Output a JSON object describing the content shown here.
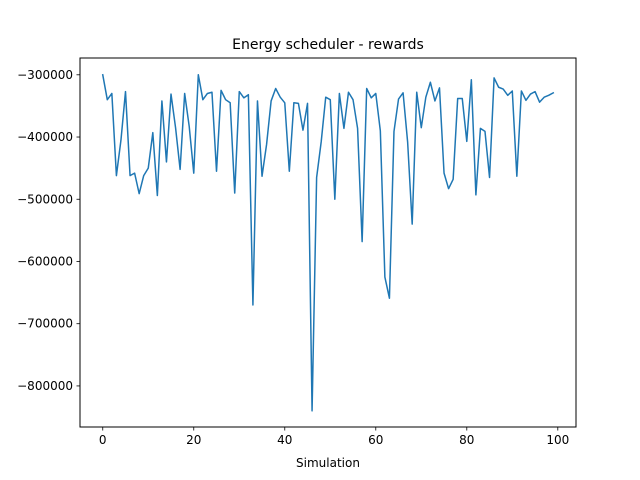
{
  "chart_data": {
    "type": "line",
    "title": "Energy scheduler - rewards",
    "xlabel": "Simulation",
    "ylabel": "",
    "xlim": [
      -5,
      104
    ],
    "ylim": [
      -866000,
      -273000
    ],
    "xticks": [
      0,
      20,
      40,
      60,
      80,
      100
    ],
    "yticks": [
      -800000,
      -700000,
      -600000,
      -500000,
      -400000,
      -300000
    ],
    "xtick_labels": [
      "0",
      "20",
      "40",
      "60",
      "80",
      "100"
    ],
    "ytick_labels": [
      "−800000",
      "−700000",
      "−600000",
      "−500000",
      "−400000",
      "−300000"
    ],
    "grid": false,
    "series": [
      {
        "name": "",
        "color": "#1f77b4",
        "x": [
          0,
          1,
          2,
          3,
          4,
          5,
          6,
          7,
          8,
          9,
          10,
          11,
          12,
          13,
          14,
          15,
          16,
          17,
          18,
          19,
          20,
          21,
          22,
          23,
          24,
          25,
          26,
          27,
          28,
          29,
          30,
          31,
          32,
          33,
          34,
          35,
          36,
          37,
          38,
          39,
          40,
          41,
          42,
          43,
          44,
          45,
          46,
          47,
          48,
          49,
          50,
          51,
          52,
          53,
          54,
          55,
          56,
          57,
          58,
          59,
          60,
          61,
          62,
          63,
          64,
          65,
          66,
          67,
          68,
          69,
          70,
          71,
          72,
          73,
          74,
          75,
          76,
          77,
          78,
          79,
          80,
          81,
          82,
          83,
          84,
          85,
          86,
          87,
          88,
          89,
          90,
          91,
          92,
          93,
          94,
          95,
          96,
          97,
          98,
          99
        ],
        "values": [
          -300000,
          -340000,
          -330000,
          -462000,
          -405000,
          -327000,
          -462000,
          -458000,
          -491000,
          -462000,
          -450000,
          -393000,
          -494000,
          -342000,
          -440000,
          -331000,
          -385000,
          -452000,
          -330000,
          -383000,
          -458000,
          -300000,
          -340000,
          -330000,
          -328000,
          -455000,
          -325000,
          -340000,
          -345000,
          -490000,
          -327000,
          -337000,
          -332000,
          -670000,
          -342000,
          -463000,
          -412000,
          -342000,
          -322000,
          -336000,
          -345000,
          -455000,
          -345000,
          -346000,
          -389000,
          -346000,
          -840000,
          -465000,
          -408000,
          -336000,
          -340000,
          -500000,
          -330000,
          -386000,
          -328000,
          -340000,
          -386000,
          -568000,
          -322000,
          -337000,
          -330000,
          -390000,
          -625000,
          -659000,
          -391000,
          -339000,
          -329000,
          -408000,
          -540000,
          -328000,
          -385000,
          -336000,
          -312000,
          -342000,
          -321000,
          -458000,
          -483000,
          -468000,
          -338000,
          -338000,
          -407000,
          -308000,
          -493000,
          -386000,
          -391000,
          -465000,
          -305000,
          -320000,
          -323000,
          -333000,
          -326000,
          -463000,
          -326000,
          -341000,
          -331000,
          -327000,
          -344000,
          -336000,
          -333000,
          -329000
        ]
      }
    ]
  }
}
